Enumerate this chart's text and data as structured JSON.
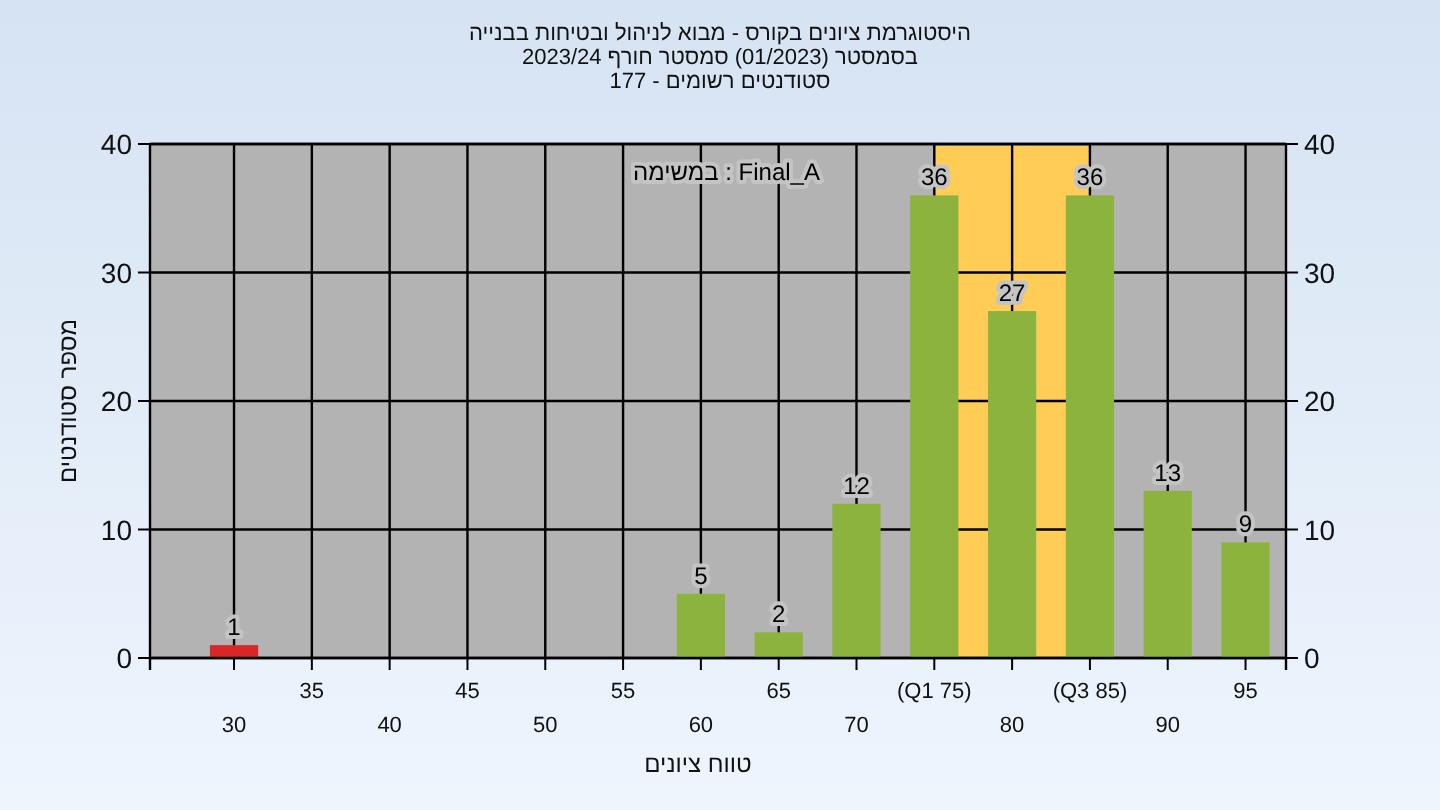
{
  "chart_data": {
    "type": "bar",
    "title": "היסטוגרמת ציונים בקורס - מבוא לניהול ובטיחות בבנייה",
    "subtitle": "בסמסטר  (01/2023)  סמסטר חורף 2023/24\nסטודנטים רשומים - 177",
    "xlabel": "טווח ציונים",
    "ylabel": "מספר סטודנטים",
    "annotations": [
      "במשימה : Final_A"
    ],
    "categories": [
      "30",
      "35",
      "40",
      "45",
      "50",
      "55",
      "60",
      "65",
      "70",
      "(Q1 75)",
      "80",
      "(Q3 85)",
      "90",
      "95"
    ],
    "values": [
      1,
      0,
      0,
      0,
      0,
      0,
      5,
      2,
      12,
      36,
      27,
      36,
      13,
      9
    ],
    "value_labels": [
      "1",
      null,
      null,
      null,
      null,
      null,
      "5",
      "2",
      "12",
      "36",
      "27",
      "36",
      "13",
      "9"
    ],
    "colors": [
      "#d92626",
      "#8db33f",
      "#8db33f",
      "#8db33f",
      "#8db33f",
      "#8db33f",
      "#8db33f",
      "#8db33f",
      "#8db33f",
      "#8db33f",
      "#8db33f",
      "#8db33f",
      "#8db33f",
      "#8db33f"
    ],
    "bands": [
      {
        "axis": "x",
        "from": "(Q1 75)",
        "to": "(Q3 85)",
        "color": "#ffcc55"
      }
    ],
    "ylim": [
      0,
      40
    ],
    "yticks": [
      0,
      10,
      20,
      30,
      40
    ],
    "y2lim": [
      0,
      40
    ],
    "y2ticks": [
      0,
      10,
      20,
      30,
      40
    ],
    "grid": true
  }
}
